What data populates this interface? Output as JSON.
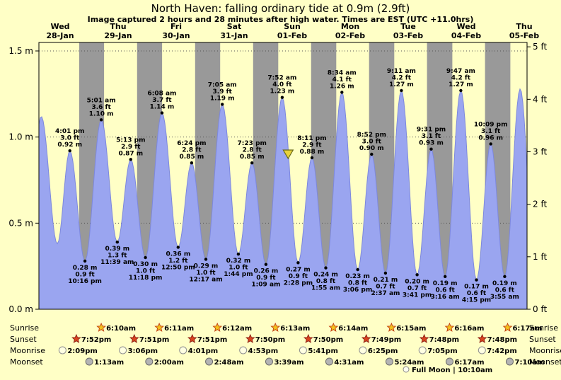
{
  "title": "North Haven: falling  ordinary tide at 0.9m (2.9ft)",
  "subtitle": "Image captured 2 hours and 28 minutes after high water. Times are EST (UTC +11.0hrs)",
  "colors": {
    "background": "#ffffc6",
    "day_band": "#ffffc6",
    "night_band": "#999999",
    "tide_fill": "#9aa5f0",
    "tide_stroke": "#7d88dd",
    "day_label": "#e01010",
    "marker_fill": "#e8d23c",
    "marker_stroke": "#6b6b1a"
  },
  "days": [
    {
      "weekday": "Wed",
      "date": "28-Jan"
    },
    {
      "weekday": "Thu",
      "date": "29-Jan"
    },
    {
      "weekday": "Fri",
      "date": "30-Jan"
    },
    {
      "weekday": "Sat",
      "date": "31-Jan"
    },
    {
      "weekday": "Sun",
      "date": "01-Feb"
    },
    {
      "weekday": "Mon",
      "date": "02-Feb"
    },
    {
      "weekday": "Tue",
      "date": "03-Feb"
    },
    {
      "weekday": "Wed",
      "date": "04-Feb"
    },
    {
      "weekday": "Thu",
      "date": "05-Feb"
    }
  ],
  "y_axis": {
    "left_labels": [
      "1.5 m",
      "1.0 m",
      "0.5 m",
      "0.0 m"
    ],
    "right_labels": [
      "5 ft",
      "4 ft",
      "3 ft",
      "2 ft",
      "1 ft",
      "0 ft"
    ]
  },
  "chart_data": {
    "type": "area",
    "ylabel_left": "metres",
    "ylabel_right": "feet",
    "ylim_m": [
      0,
      1.55
    ],
    "grid_lines_m": [
      0.5,
      1.0,
      1.5
    ],
    "tides": [
      {
        "day": -1,
        "time": "10:00 pm",
        "height_m": 0.3,
        "edge": true
      },
      {
        "day": 0,
        "time": "4:10 am",
        "height_m": 1.12,
        "edge": true
      },
      {
        "day": 0,
        "time": "10:50 am",
        "height_m": 0.38,
        "edge": true
      },
      {
        "day": 0,
        "time": "4:01 pm",
        "height_m": "0.92",
        "height_ft": "3.0",
        "kind": "high"
      },
      {
        "day": 0,
        "time": "10:16 pm",
        "height_m": "0.28",
        "height_ft": "0.9",
        "kind": "low"
      },
      {
        "day": 1,
        "time": "5:01 am",
        "height_m": "1.10",
        "height_ft": "3.6",
        "kind": "high"
      },
      {
        "day": 1,
        "time": "11:39 am",
        "height_m": "0.39",
        "height_ft": "1.3",
        "kind": "low"
      },
      {
        "day": 1,
        "time": "5:13 pm",
        "height_m": "0.87",
        "height_ft": "2.9",
        "kind": "high"
      },
      {
        "day": 1,
        "time": "11:18 pm",
        "height_m": "0.30",
        "height_ft": "1.0",
        "kind": "low"
      },
      {
        "day": 2,
        "time": "6:08 am",
        "height_m": "1.14",
        "height_ft": "3.7",
        "kind": "high"
      },
      {
        "day": 2,
        "time": "12:50 pm",
        "height_m": "0.36",
        "height_ft": "1.2",
        "kind": "low"
      },
      {
        "day": 2,
        "time": "6:24 pm",
        "height_m": "0.85",
        "height_ft": "2.8",
        "kind": "high"
      },
      {
        "day": 3,
        "time": "12:17 am",
        "height_m": "0.29",
        "height_ft": "1.0",
        "kind": "low"
      },
      {
        "day": 3,
        "time": "7:05 am",
        "height_m": "1.19",
        "height_ft": "3.9",
        "kind": "high"
      },
      {
        "day": 3,
        "time": "1:44 pm",
        "height_m": "0.32",
        "height_ft": "1.0",
        "kind": "low"
      },
      {
        "day": 3,
        "time": "7:23 pm",
        "height_m": "0.85",
        "height_ft": "2.8",
        "kind": "high"
      },
      {
        "day": 4,
        "time": "1:09 am",
        "height_m": "0.26",
        "height_ft": "0.9",
        "kind": "low"
      },
      {
        "day": 4,
        "time": "7:52 am",
        "height_m": "1.23",
        "height_ft": "4.0",
        "kind": "high"
      },
      {
        "day": 4,
        "time": "2:28 pm",
        "height_m": "0.27",
        "height_ft": "0.9",
        "kind": "low"
      },
      {
        "day": 4,
        "time": "8:11 pm",
        "height_m": "0.88",
        "height_ft": "2.9",
        "kind": "high"
      },
      {
        "day": 5,
        "time": "1:55 am",
        "height_m": "0.24",
        "height_ft": "0.8",
        "kind": "low"
      },
      {
        "day": 5,
        "time": "8:34 am",
        "height_m": "1.26",
        "height_ft": "4.1",
        "kind": "high"
      },
      {
        "day": 5,
        "time": "3:06 pm",
        "height_m": "0.23",
        "height_ft": "0.8",
        "kind": "low"
      },
      {
        "day": 5,
        "time": "8:52 pm",
        "height_m": "0.90",
        "height_ft": "3.0",
        "kind": "high"
      },
      {
        "day": 6,
        "time": "2:37 am",
        "height_m": "0.21",
        "height_ft": "0.7",
        "kind": "low"
      },
      {
        "day": 6,
        "time": "9:11 am",
        "height_m": "1.27",
        "height_ft": "4.2",
        "kind": "high"
      },
      {
        "day": 6,
        "time": "3:41 pm",
        "height_m": "0.20",
        "height_ft": "0.7",
        "kind": "low"
      },
      {
        "day": 6,
        "time": "9:31 pm",
        "height_m": "0.93",
        "height_ft": "3.1",
        "kind": "high"
      },
      {
        "day": 7,
        "time": "3:16 am",
        "height_m": "0.19",
        "height_ft": "0.6",
        "kind": "low"
      },
      {
        "day": 7,
        "time": "9:47 am",
        "height_m": "1.27",
        "height_ft": "4.2",
        "kind": "high"
      },
      {
        "day": 7,
        "time": "4:15 pm",
        "height_m": "0.17",
        "height_ft": "0.6",
        "kind": "low"
      },
      {
        "day": 7,
        "time": "10:09 pm",
        "height_m": "0.96",
        "height_ft": "3.1",
        "kind": "high"
      },
      {
        "day": 8,
        "time": "3:55 am",
        "height_m": "0.19",
        "height_ft": "0.6",
        "kind": "low"
      },
      {
        "day": 8,
        "time": "10:20 am",
        "height_m": 1.28,
        "edge": true
      },
      {
        "day": 8,
        "time": "4:40 pm",
        "height_m": 0.17,
        "edge": true
      }
    ],
    "current_marker": {
      "day": 4,
      "time": "10:20 am",
      "height_m": 0.9
    }
  },
  "astro": {
    "row_labels": [
      "Sunrise",
      "Sunset",
      "Moonrise",
      "Moonset"
    ],
    "sunrise": [
      "6:10am",
      "6:11am",
      "6:12am",
      "6:13am",
      "6:14am",
      "6:15am",
      "6:16am",
      "6:17am"
    ],
    "sunset": [
      "7:52pm",
      "7:51pm",
      "7:51pm",
      "7:50pm",
      "7:50pm",
      "7:49pm",
      "7:48pm",
      "7:48pm"
    ],
    "moonrise": [
      "2:09pm",
      "3:06pm",
      "4:01pm",
      "4:53pm",
      "5:41pm",
      "6:25pm",
      "7:05pm",
      "7:42pm"
    ],
    "moonset": [
      "1:13am",
      "2:00am",
      "2:48am",
      "3:39am",
      "4:31am",
      "5:24am",
      "6:17am",
      "7:10am"
    ],
    "moon_phase": "Full Moon | 10:10am"
  }
}
